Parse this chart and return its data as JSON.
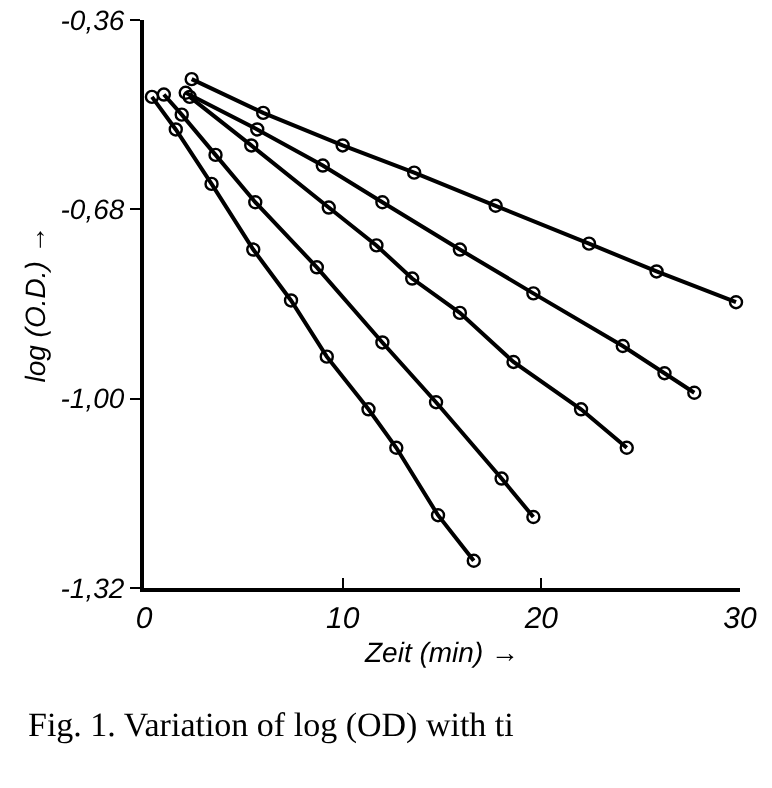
{
  "chart_data": {
    "type": "line",
    "xlabel": "Zeit (min) →",
    "ylabel": "log (O.D.) →",
    "annotations": [
      "Fig. 1. Variation of log (OD) with ti"
    ],
    "xlim": [
      0,
      30
    ],
    "xticks": [
      0,
      10,
      20,
      30
    ],
    "ylim": [
      -1.32,
      -0.36
    ],
    "yticks": [
      {
        "value": -0.36,
        "label": "-0,36"
      },
      {
        "value": -0.68,
        "label": "-0,68"
      },
      {
        "value": -1.0,
        "label": "-1,00"
      },
      {
        "value": -1.32,
        "label": "-1,32"
      }
    ],
    "grid": false,
    "marker": "circle",
    "line_style": "solid",
    "series": [
      {
        "color": "#000000",
        "x": [
          2.4,
          6.0,
          10.0,
          13.6,
          17.7,
          22.4,
          25.8,
          29.8
        ],
        "values": [
          -0.46,
          -0.517,
          -0.572,
          -0.618,
          -0.674,
          -0.738,
          -0.785,
          -0.837
        ]
      },
      {
        "color": "#000000",
        "x": [
          2.1,
          5.7,
          9.0,
          12.0,
          15.9,
          19.6,
          24.1,
          26.2,
          27.7
        ],
        "values": [
          -0.483,
          -0.545,
          -0.606,
          -0.668,
          -0.748,
          -0.822,
          -0.911,
          -0.957,
          -0.99
        ]
      },
      {
        "color": "#000000",
        "x": [
          2.3,
          5.4,
          9.3,
          11.7,
          13.5,
          15.9,
          18.6,
          22.0,
          24.3
        ],
        "values": [
          -0.49,
          -0.572,
          -0.677,
          -0.741,
          -0.797,
          -0.855,
          -0.938,
          -1.018,
          -1.083
        ]
      },
      {
        "color": "#000000",
        "x": [
          1.0,
          1.9,
          3.6,
          5.6,
          8.7,
          12.0,
          14.7,
          18.0,
          19.6
        ],
        "values": [
          -0.486,
          -0.52,
          -0.588,
          -0.668,
          -0.778,
          -0.905,
          -1.006,
          -1.135,
          -1.2
        ]
      },
      {
        "color": "#000000",
        "x": [
          0.4,
          1.6,
          3.4,
          5.5,
          7.4,
          9.2,
          11.3,
          12.7,
          14.8,
          16.6
        ],
        "values": [
          -0.49,
          -0.545,
          -0.637,
          -0.748,
          -0.834,
          -0.929,
          -1.018,
          -1.083,
          -1.197,
          -1.274
        ]
      }
    ]
  }
}
